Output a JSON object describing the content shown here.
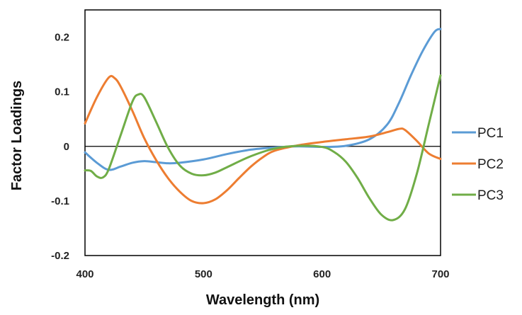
{
  "chart_data": {
    "type": "line",
    "title": "",
    "xlabel": "Wavelength (nm)",
    "ylabel": "Factor Loadings",
    "xlim": [
      400,
      700
    ],
    "ylim": [
      -0.2,
      0.25
    ],
    "x_ticks": [
      400,
      500,
      600,
      700
    ],
    "x_tick_labels": [
      "400",
      "500",
      "600",
      "700"
    ],
    "y_ticks": [
      -0.2,
      -0.1,
      0,
      0.1,
      0.2
    ],
    "y_tick_labels": [
      "-0.2",
      "-0.1",
      "0",
      "0.1",
      "0.2"
    ],
    "grid": false,
    "legend_position": "right",
    "series": [
      {
        "name": "PC1",
        "color": "#5B9BD5",
        "points": [
          [
            400,
            -0.011
          ],
          [
            410,
            -0.03
          ],
          [
            420,
            -0.043
          ],
          [
            430,
            -0.037
          ],
          [
            440,
            -0.03
          ],
          [
            450,
            -0.027
          ],
          [
            460,
            -0.029
          ],
          [
            470,
            -0.031
          ],
          [
            480,
            -0.03
          ],
          [
            500,
            -0.024
          ],
          [
            520,
            -0.014
          ],
          [
            540,
            -0.006
          ],
          [
            560,
            -0.002
          ],
          [
            580,
            0.0
          ],
          [
            600,
            -0.001
          ],
          [
            620,
            0.001
          ],
          [
            640,
            0.013
          ],
          [
            655,
            0.04
          ],
          [
            665,
            0.08
          ],
          [
            675,
            0.13
          ],
          [
            685,
            0.175
          ],
          [
            695,
            0.21
          ],
          [
            700,
            0.215
          ]
        ]
      },
      {
        "name": "PC2",
        "color": "#ED7D31",
        "points": [
          [
            400,
            0.042
          ],
          [
            410,
            0.09
          ],
          [
            420,
            0.126
          ],
          [
            425,
            0.125
          ],
          [
            430,
            0.11
          ],
          [
            440,
            0.065
          ],
          [
            450,
            0.015
          ],
          [
            460,
            -0.025
          ],
          [
            470,
            -0.058
          ],
          [
            480,
            -0.083
          ],
          [
            490,
            -0.1
          ],
          [
            500,
            -0.104
          ],
          [
            510,
            -0.097
          ],
          [
            520,
            -0.08
          ],
          [
            530,
            -0.058
          ],
          [
            540,
            -0.037
          ],
          [
            550,
            -0.02
          ],
          [
            560,
            -0.008
          ],
          [
            580,
            0.002
          ],
          [
            600,
            0.008
          ],
          [
            620,
            0.013
          ],
          [
            640,
            0.018
          ],
          [
            655,
            0.026
          ],
          [
            665,
            0.032
          ],
          [
            670,
            0.03
          ],
          [
            680,
            0.01
          ],
          [
            690,
            -0.013
          ],
          [
            700,
            -0.023
          ]
        ]
      },
      {
        "name": "PC3",
        "color": "#70AD47",
        "points": [
          [
            400,
            -0.044
          ],
          [
            405,
            -0.045
          ],
          [
            410,
            -0.055
          ],
          [
            415,
            -0.057
          ],
          [
            420,
            -0.042
          ],
          [
            430,
            0.02
          ],
          [
            440,
            0.082
          ],
          [
            445,
            0.095
          ],
          [
            450,
            0.09
          ],
          [
            460,
            0.045
          ],
          [
            470,
            -0.002
          ],
          [
            480,
            -0.035
          ],
          [
            490,
            -0.05
          ],
          [
            500,
            -0.053
          ],
          [
            510,
            -0.048
          ],
          [
            520,
            -0.038
          ],
          [
            540,
            -0.018
          ],
          [
            560,
            -0.004
          ],
          [
            580,
            0.001
          ],
          [
            600,
            -0.001
          ],
          [
            610,
            -0.01
          ],
          [
            620,
            -0.028
          ],
          [
            630,
            -0.058
          ],
          [
            640,
            -0.095
          ],
          [
            650,
            -0.125
          ],
          [
            660,
            -0.135
          ],
          [
            670,
            -0.115
          ],
          [
            680,
            -0.05
          ],
          [
            690,
            0.04
          ],
          [
            700,
            0.13
          ]
        ]
      }
    ]
  }
}
